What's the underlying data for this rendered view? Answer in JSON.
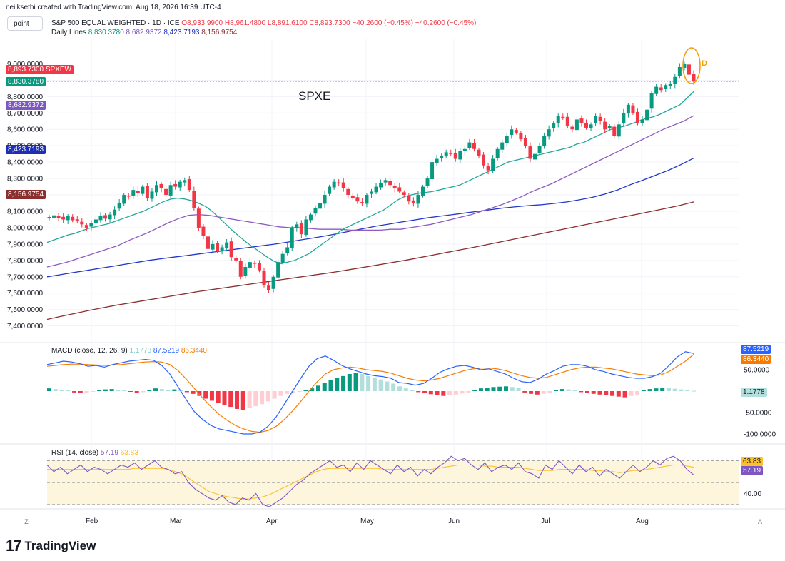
{
  "header": {
    "credit": "neilksethi created with TradingView.com, Aug 18, 2026 16:39 UTC-4",
    "tool_label": "point"
  },
  "symbol_legend": {
    "title": "S&P 500 EQUAL WEIGHTED · 1D · ICE",
    "ohlc": "O8,933.9900 H8,961.4800 L8,891.6100 C8,893.7300 −40.2600 (−0.45%) −40.2600 (−0.45%)",
    "lines_label": "Daily Lines",
    "lines_values": [
      "8,830.3780",
      "8,682.9372",
      "8,423.7193",
      "8,156.9754"
    ]
  },
  "annotations": {
    "chart_text": "SPXE",
    "marker_letter": "D"
  },
  "price_tags": [
    {
      "text": "8,893.7300 SPXEW",
      "color": "#f23645"
    },
    {
      "text": "8,830.3780",
      "color": "#089981"
    },
    {
      "text": "8,682.9372",
      "color": "#7e57c2"
    },
    {
      "text": "8,423.7193",
      "color": "#1e2fb5"
    },
    {
      "text": "8,156.9754",
      "color": "#8b2e2e"
    }
  ],
  "macd_legend": {
    "label": "MACD (close, 12, 26, 9)",
    "hist": "1.1778",
    "macd": "87.5219",
    "signal": "86.3440"
  },
  "macd_tags": [
    {
      "text": "87.5219",
      "color": "#2962ff"
    },
    {
      "text": "86.3440",
      "color": "#f57c00"
    },
    {
      "text": "1.1778",
      "color": "#b2dfdb"
    }
  ],
  "rsi_legend": {
    "label": "RSI (14, close)",
    "rsi": "57.19",
    "ma": "63.83"
  },
  "rsi_tags": [
    {
      "text": "63.83",
      "color": "#fbc02d"
    },
    {
      "text": "57.19",
      "color": "#7e57c2"
    }
  ],
  "footer": {
    "logo": "17",
    "name": "TradingView"
  },
  "corners": {
    "left": "Z",
    "right": "A"
  },
  "colors": {
    "up": "#089981",
    "down": "#f23645",
    "ma20": "#26a69a",
    "ma50": "#8e5bc0",
    "ma100": "#2137c9",
    "ma200": "#8b2e2e",
    "macd": "#2962ff",
    "signal": "#f57c00",
    "rsi": "#7e57c2",
    "rsi_ma": "#fbc02d",
    "ellipse": "#f59e0b"
  },
  "chart_data": {
    "type": "candlestick",
    "title": "S&P 500 EQUAL WEIGHTED · 1D · ICE",
    "xlabel": "",
    "ylabel": "",
    "x_ticks": [
      "Feb",
      "Mar",
      "Apr",
      "May",
      "Jun",
      "Jul",
      "Aug"
    ],
    "ylim": [
      7320,
      9150
    ],
    "y_ticks": [
      "9,000.0000",
      "8,900.0000",
      "8,800.0000",
      "8,700.0000",
      "8,600.0000",
      "8,500.0000",
      "8,400.0000",
      "8,300.0000",
      "8,200.0000",
      "8,100.0000",
      "8,000.0000",
      "7,900.0000",
      "7,800.0000",
      "7,700.0000",
      "7,600.0000",
      "7,500.0000",
      "7,400.0000"
    ],
    "last_close": 8893.73,
    "close": [
      8065,
      8075,
      8060,
      8050,
      8070,
      8045,
      8040,
      8020,
      8000,
      8030,
      8050,
      8070,
      8055,
      8080,
      8110,
      8150,
      8200,
      8190,
      8230,
      8210,
      8250,
      8180,
      8220,
      8260,
      8240,
      8200,
      8260,
      8250,
      8280,
      8290,
      8230,
      8120,
      8000,
      7950,
      7870,
      7900,
      7860,
      7880,
      7910,
      7820,
      7800,
      7700,
      7760,
      7790,
      7780,
      7740,
      7650,
      7620,
      7700,
      7790,
      7840,
      7880,
      8000,
      8020,
      7960,
      8050,
      8080,
      8120,
      8150,
      8200,
      8250,
      8280,
      8270,
      8240,
      8200,
      8180,
      8160,
      8150,
      8200,
      8220,
      8250,
      8270,
      8290,
      8260,
      8240,
      8220,
      8200,
      8160,
      8150,
      8200,
      8250,
      8300,
      8400,
      8420,
      8440,
      8460,
      8450,
      8420,
      8470,
      8480,
      8520,
      8480,
      8440,
      8380,
      8350,
      8420,
      8480,
      8520,
      8560,
      8600,
      8580,
      8540,
      8500,
      8420,
      8450,
      8500,
      8560,
      8600,
      8640,
      8680,
      8670,
      8620,
      8600,
      8660,
      8640,
      8610,
      8630,
      8680,
      8650,
      8600,
      8620,
      8560,
      8630,
      8700,
      8750,
      8700,
      8640,
      8660,
      8720,
      8820,
      8860,
      8840,
      8870,
      8880,
      8920,
      8980,
      9000,
      8934,
      8894
    ],
    "ma20": [
      7910,
      7925,
      7940,
      7955,
      7965,
      7980,
      7995,
      8005,
      8015,
      8025,
      8040,
      8055,
      8070,
      8085,
      8100,
      8120,
      8140,
      8160,
      8175,
      8180,
      8175,
      8165,
      8150,
      8130,
      8100,
      8060,
      8020,
      7980,
      7945,
      7910,
      7880,
      7850,
      7820,
      7795,
      7780,
      7790,
      7800,
      7820,
      7840,
      7870,
      7900,
      7930,
      7960,
      7990,
      8010,
      8030,
      8050,
      8070,
      8090,
      8110,
      8140,
      8170,
      8190,
      8200,
      8210,
      8215,
      8220,
      8230,
      8240,
      8250,
      8260,
      8280,
      8300,
      8320,
      8340,
      8360,
      8380,
      8400,
      8410,
      8420,
      8430,
      8440,
      8450,
      8460,
      8470,
      8480,
      8490,
      8510,
      8520,
      8540,
      8560,
      8580,
      8600,
      8610,
      8620,
      8635,
      8650,
      8665,
      8675,
      8690,
      8710,
      8730,
      8750,
      8790,
      8830
    ],
    "ma50": [
      7760,
      7775,
      7790,
      7810,
      7830,
      7850,
      7870,
      7890,
      7920,
      7945,
      7970,
      8000,
      8030,
      8055,
      8075,
      8080,
      8075,
      8065,
      8055,
      8045,
      8035,
      8025,
      8015,
      8005,
      8000,
      8000,
      7995,
      7990,
      7990,
      7990,
      7985,
      7985,
      7985,
      7985,
      7990,
      7990,
      8000,
      8010,
      8020,
      8035,
      8050,
      8065,
      8080,
      8100,
      8120,
      8140,
      8165,
      8190,
      8220,
      8245,
      8270,
      8300,
      8330,
      8360,
      8390,
      8420,
      8450,
      8480,
      8510,
      8540,
      8570,
      8600,
      8625,
      8650,
      8683
    ],
    "ma100": [
      7700,
      7712,
      7725,
      7737,
      7750,
      7762,
      7775,
      7787,
      7800,
      7810,
      7820,
      7830,
      7840,
      7850,
      7860,
      7870,
      7880,
      7890,
      7900,
      7912,
      7925,
      7937,
      7950,
      7965,
      7980,
      7995,
      8010,
      8022,
      8035,
      8047,
      8060,
      8070,
      8080,
      8090,
      8100,
      8110,
      8120,
      8128,
      8135,
      8140,
      8148,
      8157,
      8170,
      8185,
      8205,
      8230,
      8262,
      8290,
      8320,
      8350,
      8385,
      8424
    ],
    "ma200": [
      7440,
      7458,
      7476,
      7494,
      7510,
      7526,
      7540,
      7554,
      7568,
      7582,
      7596,
      7610,
      7622,
      7634,
      7646,
      7658,
      7670,
      7682,
      7694,
      7706,
      7718,
      7730,
      7744,
      7758,
      7772,
      7786,
      7800,
      7816,
      7832,
      7848,
      7864,
      7880,
      7897,
      7914,
      7931,
      7948,
      7965,
      7982,
      7999,
      8016,
      8033,
      8050,
      8067,
      8084,
      8101,
      8118,
      8136,
      8157
    ]
  }
}
